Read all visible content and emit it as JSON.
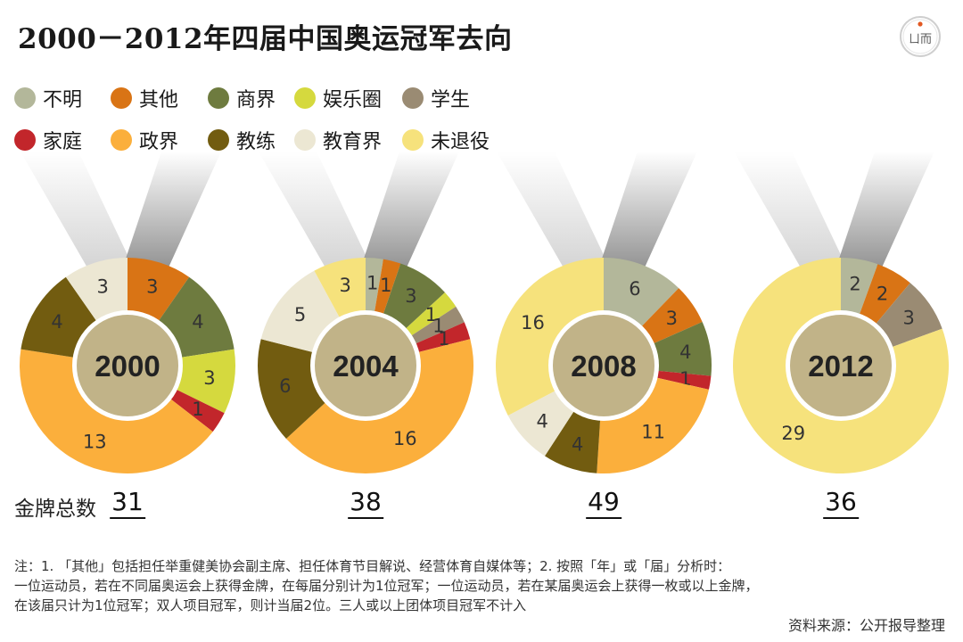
{
  "title": "2000－2012年四届中国奥运冠军去向",
  "logo_text": "ㄩ而",
  "legend": [
    {
      "label": "不明",
      "color": "#b3b79a"
    },
    {
      "label": "其他",
      "color": "#d97415"
    },
    {
      "label": "商界",
      "color": "#6e7b3f"
    },
    {
      "label": "娱乐圈",
      "color": "#d5d93e"
    },
    {
      "label": "学生",
      "color": "#9a8b73"
    },
    {
      "label": "家庭",
      "color": "#c2262b"
    },
    {
      "label": "政界",
      "color": "#fbaf3c"
    },
    {
      "label": "教练",
      "color": "#725c10"
    },
    {
      "label": "教育界",
      "color": "#ece7d3"
    },
    {
      "label": "未退役",
      "color": "#f6e27c"
    }
  ],
  "center_color": "#c1b388",
  "totals_label": "金牌总数",
  "chart_data": [
    {
      "type": "pie",
      "year": "2000",
      "total": "31",
      "slices": [
        {
          "category": "不明",
          "value": 0
        },
        {
          "category": "其他",
          "value": 3
        },
        {
          "category": "商界",
          "value": 4
        },
        {
          "category": "娱乐圈",
          "value": 3
        },
        {
          "category": "学生",
          "value": 0
        },
        {
          "category": "家庭",
          "value": 1
        },
        {
          "category": "政界",
          "value": 13
        },
        {
          "category": "教练",
          "value": 4
        },
        {
          "category": "教育界",
          "value": 3
        },
        {
          "category": "未退役",
          "value": 0
        }
      ]
    },
    {
      "type": "pie",
      "year": "2004",
      "total": "38",
      "slices": [
        {
          "category": "不明",
          "value": 1
        },
        {
          "category": "其他",
          "value": 1
        },
        {
          "category": "商界",
          "value": 3
        },
        {
          "category": "娱乐圈",
          "value": 1
        },
        {
          "category": "学生",
          "value": 1
        },
        {
          "category": "家庭",
          "value": 1
        },
        {
          "category": "政界",
          "value": 16
        },
        {
          "category": "教练",
          "value": 6
        },
        {
          "category": "教育界",
          "value": 5
        },
        {
          "category": "未退役",
          "value": 3
        }
      ]
    },
    {
      "type": "pie",
      "year": "2008",
      "total": "49",
      "slices": [
        {
          "category": "不明",
          "value": 6
        },
        {
          "category": "其他",
          "value": 3
        },
        {
          "category": "商界",
          "value": 4
        },
        {
          "category": "娱乐圈",
          "value": 0
        },
        {
          "category": "学生",
          "value": 0
        },
        {
          "category": "家庭",
          "value": 1
        },
        {
          "category": "政界",
          "value": 11
        },
        {
          "category": "教练",
          "value": 4
        },
        {
          "category": "教育界",
          "value": 4
        },
        {
          "category": "未退役",
          "value": 16
        }
      ]
    },
    {
      "type": "pie",
      "year": "2012",
      "total": "36",
      "slices": [
        {
          "category": "不明",
          "value": 2
        },
        {
          "category": "其他",
          "value": 2
        },
        {
          "category": "商界",
          "value": 0
        },
        {
          "category": "娱乐圈",
          "value": 0
        },
        {
          "category": "学生",
          "value": 3
        },
        {
          "category": "家庭",
          "value": 0
        },
        {
          "category": "政界",
          "value": 0
        },
        {
          "category": "教练",
          "value": 0
        },
        {
          "category": "教育界",
          "value": 0
        },
        {
          "category": "未退役",
          "value": 29
        }
      ]
    }
  ],
  "notes": [
    "注：1. 「其他」包括担任举重健美协会副主席、担任体育节目解说、经营体育自媒体等；2. 按照「年」或「届」分析时：",
    "一位运动员，若在不同届奥运会上获得金牌，在每届分别计为1位冠军；一位运动员，若在某届奥运会上获得一枚或以上金牌，",
    "在该届只计为1位冠军；双人项目冠军，则计当届2位。三人或以上团体项目冠军不计入"
  ],
  "source": "资料来源：公开报导整理"
}
